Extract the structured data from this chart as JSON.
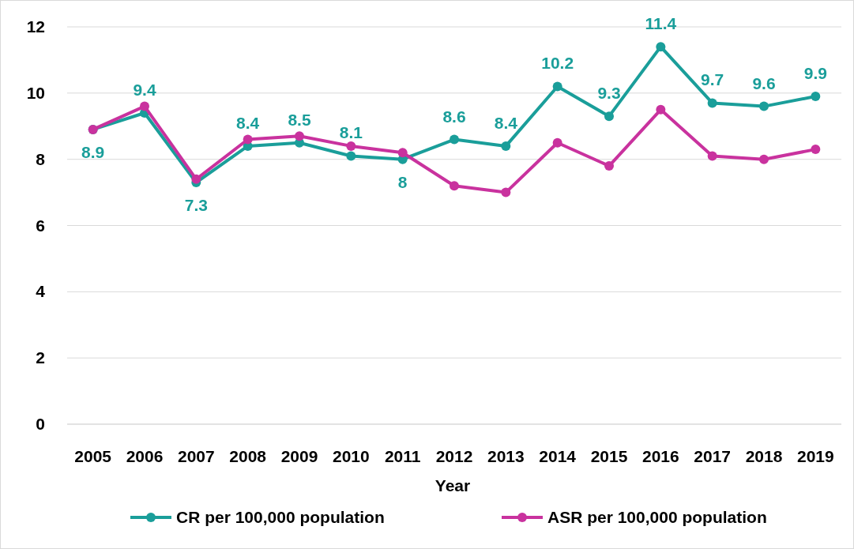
{
  "chart_data": {
    "type": "line",
    "xlabel": "Year",
    "categories": [
      "2005",
      "2006",
      "2007",
      "2008",
      "2009",
      "2010",
      "2011",
      "2012",
      "2013",
      "2014",
      "2015",
      "2016",
      "2017",
      "2018",
      "2019"
    ],
    "series": [
      {
        "name": "CR per 100,000 population",
        "color": "#1a9e9a",
        "values": [
          8.9,
          9.4,
          7.3,
          8.4,
          8.5,
          8.1,
          8,
          8.6,
          8.4,
          10.2,
          9.3,
          11.4,
          9.7,
          9.6,
          9.9
        ],
        "value_labels": [
          "8.9",
          "9.4",
          "7.3",
          "8.4",
          "8.5",
          "8.1",
          "8",
          "8.6",
          "8.4",
          "10.2",
          "9.3",
          "11.4",
          "9.7",
          "9.6",
          "9.9"
        ]
      },
      {
        "name": "ASR per 100,000 population",
        "color": "#c9329e",
        "values": [
          8.9,
          9.6,
          7.4,
          8.6,
          8.7,
          8.4,
          8.2,
          7.2,
          7.0,
          8.5,
          7.8,
          9.5,
          8.1,
          8.0,
          8.3
        ]
      }
    ],
    "ylim": [
      0,
      12
    ],
    "yticks": [
      0,
      2,
      4,
      6,
      8,
      10,
      12
    ],
    "grid": "y",
    "marker": "circle",
    "legend": "bottom"
  }
}
